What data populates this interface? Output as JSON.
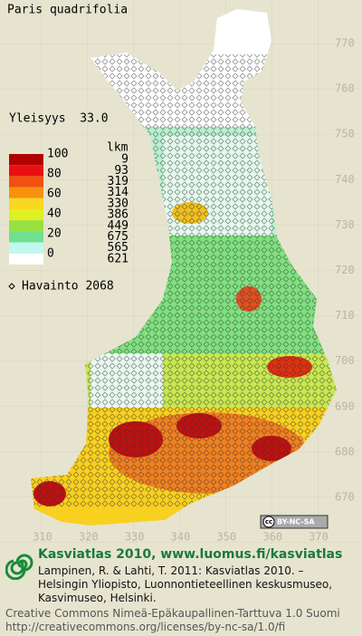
{
  "title": "Paris quadrifolia",
  "frequency": "Yleisyys  33.0",
  "legend": {
    "count_header": "lkm",
    "labels": [
      100,
      80,
      60,
      40,
      20,
      0
    ],
    "bands": [
      {
        "color": "#b00000",
        "count": 9
      },
      {
        "color": "#e81010",
        "count": 93
      },
      {
        "color": "#f05010",
        "count": 319
      },
      {
        "color": "#f89010",
        "count": 314
      },
      {
        "color": "#f8d820",
        "count": 330
      },
      {
        "color": "#e0f020",
        "count": 386
      },
      {
        "color": "#98e040",
        "count": 449
      },
      {
        "color": "#70e090",
        "count": 675
      },
      {
        "color": "#c0f8f0",
        "count": 565
      },
      {
        "color": "#ffffff",
        "count": 621
      }
    ]
  },
  "observations": "Havainto 2068",
  "y_axis": {
    "ticks": [
      770,
      760,
      750,
      740,
      730,
      720,
      710,
      700,
      690,
      680,
      670
    ]
  },
  "x_axis": {
    "ticks": [
      310,
      320,
      330,
      340,
      350,
      360,
      370
    ]
  },
  "license_badge": {
    "mark": "cc",
    "terms": "BY-NC-SA"
  },
  "footer": {
    "heading": "Kasviatlas 2010, www.luomus.fi/kasviatlas",
    "citation": [
      "Lampinen, R. & Lahti, T. 2011: Kasviatlas 2010. –",
      "Helsingin Yliopisto, Luonnontieteellinen keskusmuseo,",
      "Kasvimuseo, Helsinki."
    ],
    "license": [
      "Creative Commons Nimeä-Epäkaupallinen-Tarttuva 1.0 Suomi",
      "http://creativecommons.org/licenses/by-nc-sa/1.0/fi"
    ]
  }
}
